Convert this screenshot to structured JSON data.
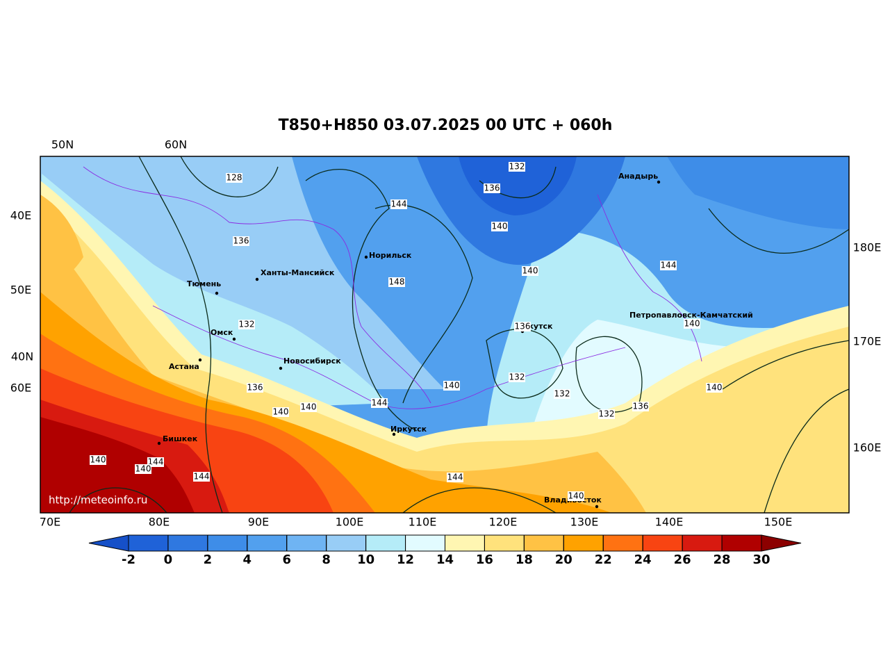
{
  "title": "T850+H850 03.07.2025 00 UTC + 060h",
  "axis_labels": {
    "top": [
      "50N",
      "60N"
    ],
    "left": [
      "40E",
      "50E",
      "40N",
      "60E"
    ],
    "right": [
      "180E",
      "170E",
      "160E"
    ],
    "bottom": [
      "70E",
      "80E",
      "90E",
      "100E",
      "110E",
      "120E",
      "130E",
      "140E",
      "150E"
    ]
  },
  "cities": [
    "Анадырь",
    "Норильск",
    "Ханты-Мансийск",
    "Тюмень",
    "Петропавловск-Камчатский",
    "Якутск",
    "Омск",
    "Новосибирск",
    "Астана",
    "Иркутск",
    "Бишкек",
    "Владивосток"
  ],
  "contour_labels": [
    128,
    132,
    136,
    144,
    140,
    136,
    140,
    148,
    144,
    132,
    136,
    140,
    132,
    140,
    140,
    136,
    144,
    132,
    136,
    132,
    140,
    140,
    144,
    140,
    140,
    144,
    144,
    140
  ],
  "colorbar": {
    "levels": [
      -2,
      0,
      2,
      4,
      6,
      8,
      10,
      12,
      14,
      16,
      18,
      20,
      22,
      24,
      26,
      28,
      30
    ],
    "colors": [
      "#1f62d8",
      "#2f78e0",
      "#3e8de8",
      "#52a0ee",
      "#6fb4f3",
      "#98cdf6",
      "#b5ecf8",
      "#e2fbff",
      "#fff6b2",
      "#ffe27c",
      "#ffc244",
      "#ffa200",
      "#ff7212",
      "#f84412",
      "#d81a10",
      "#b00000"
    ],
    "under_color": "#1650c8",
    "over_color": "#8c0000"
  },
  "watermark": "http://meteoinfo.ru"
}
